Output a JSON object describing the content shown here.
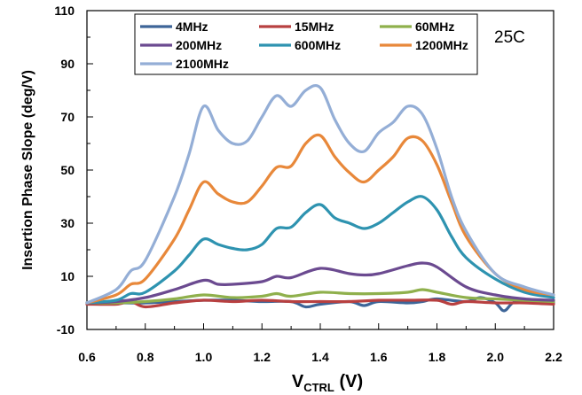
{
  "chart_data": {
    "type": "line",
    "xlabel_main": "V",
    "xlabel_sub": "CTRL",
    "xlabel_suffix": " (V)",
    "ylabel": "Insertion Phase Slope (deg/V)",
    "annotation": "25C",
    "xlim": [
      0.6,
      2.2
    ],
    "ylim": [
      -10,
      110
    ],
    "x_ticks": [
      "0.6",
      "0.8",
      "1.0",
      "1.2",
      "1.4",
      "1.6",
      "1.8",
      "2.0",
      "2.2"
    ],
    "y_ticks": [
      "-10",
      "10",
      "30",
      "50",
      "70",
      "90",
      "110"
    ],
    "legend_position": "top",
    "grid": false,
    "series": [
      {
        "name": "4MHz",
        "color": "#3d6598",
        "x": [
          0.6,
          0.7,
          0.8,
          0.9,
          1.0,
          1.1,
          1.2,
          1.3,
          1.35,
          1.4,
          1.5,
          1.55,
          1.6,
          1.7,
          1.75,
          1.8,
          1.9,
          1.95,
          2.0,
          2.03,
          2.06,
          2.1,
          2.2
        ],
        "y": [
          0,
          0,
          0,
          0.5,
          1,
          1,
          0.5,
          0.5,
          -1.5,
          -0.5,
          0.5,
          -1,
          0.5,
          0,
          0.5,
          1.5,
          0.5,
          2,
          0,
          -3,
          0,
          1,
          0
        ]
      },
      {
        "name": "15MHz",
        "color": "#b84040",
        "x": [
          0.6,
          0.7,
          0.75,
          0.8,
          0.9,
          1.0,
          1.1,
          1.2,
          1.3,
          1.4,
          1.5,
          1.6,
          1.7,
          1.8,
          1.85,
          1.9,
          2.0,
          2.1,
          2.2
        ],
        "y": [
          -0.5,
          -0.5,
          0.5,
          -1.5,
          0,
          1,
          0.5,
          1,
          0.5,
          0.5,
          0.5,
          1,
          1,
          1,
          -0.5,
          0.5,
          0,
          0,
          -0.5
        ]
      },
      {
        "name": "60MHz",
        "color": "#8fb04c",
        "x": [
          0.6,
          0.7,
          0.8,
          0.9,
          1.0,
          1.1,
          1.2,
          1.25,
          1.3,
          1.4,
          1.5,
          1.6,
          1.7,
          1.75,
          1.8,
          1.9,
          2.0,
          2.1,
          2.2
        ],
        "y": [
          0,
          0,
          0.5,
          1.5,
          3,
          2,
          2.5,
          3.5,
          2.5,
          4,
          3.5,
          3.5,
          4,
          5,
          4,
          2,
          1.5,
          1,
          0.5
        ]
      },
      {
        "name": "200MHz",
        "color": "#6b4a90",
        "x": [
          0.6,
          0.7,
          0.8,
          0.9,
          1.0,
          1.05,
          1.1,
          1.2,
          1.25,
          1.3,
          1.4,
          1.5,
          1.55,
          1.6,
          1.7,
          1.75,
          1.8,
          1.9,
          2.0,
          2.1,
          2.2
        ],
        "y": [
          0,
          0.5,
          2,
          5,
          8.5,
          7,
          7,
          8,
          10,
          9.5,
          13,
          11,
          10.5,
          11,
          14,
          15,
          13.5,
          6,
          3,
          1.5,
          1
        ]
      },
      {
        "name": "600MHz",
        "color": "#2e93b0",
        "x": [
          0.6,
          0.7,
          0.75,
          0.8,
          0.9,
          0.95,
          1.0,
          1.05,
          1.1,
          1.15,
          1.2,
          1.25,
          1.3,
          1.35,
          1.4,
          1.45,
          1.5,
          1.55,
          1.6,
          1.65,
          1.7,
          1.75,
          1.8,
          1.85,
          1.9,
          2.0,
          2.1,
          2.2
        ],
        "y": [
          0,
          1,
          3.5,
          4,
          12,
          18,
          24,
          22,
          20.5,
          20,
          22,
          28,
          28.5,
          34,
          37,
          32,
          30,
          28,
          30,
          34,
          38,
          40,
          35,
          25,
          17,
          9,
          4,
          2
        ]
      },
      {
        "name": "1200MHz",
        "color": "#e8883a",
        "x": [
          0.6,
          0.7,
          0.75,
          0.8,
          0.9,
          0.95,
          1.0,
          1.05,
          1.1,
          1.15,
          1.2,
          1.25,
          1.3,
          1.35,
          1.4,
          1.45,
          1.5,
          1.55,
          1.6,
          1.65,
          1.7,
          1.75,
          1.8,
          1.85,
          1.9,
          2.0,
          2.1,
          2.2
        ],
        "y": [
          0,
          3,
          7,
          9,
          24,
          35,
          45.5,
          41,
          38,
          38,
          44,
          51,
          51.5,
          60,
          63,
          55,
          49,
          45.5,
          50,
          55,
          62,
          61,
          52,
          38,
          25,
          11,
          5,
          3
        ]
      },
      {
        "name": "2100MHz",
        "color": "#94aed6",
        "x": [
          0.6,
          0.7,
          0.75,
          0.8,
          0.9,
          0.95,
          1.0,
          1.05,
          1.1,
          1.15,
          1.2,
          1.25,
          1.3,
          1.35,
          1.4,
          1.45,
          1.5,
          1.55,
          1.6,
          1.65,
          1.7,
          1.75,
          1.8,
          1.85,
          1.9,
          2.0,
          2.1,
          2.2
        ],
        "y": [
          0,
          5,
          12,
          16,
          40,
          56,
          74,
          65,
          60,
          61,
          70,
          78,
          74,
          80,
          81,
          69,
          60,
          57,
          64,
          68,
          74,
          71,
          58,
          40,
          27,
          11,
          6,
          3
        ]
      }
    ]
  }
}
